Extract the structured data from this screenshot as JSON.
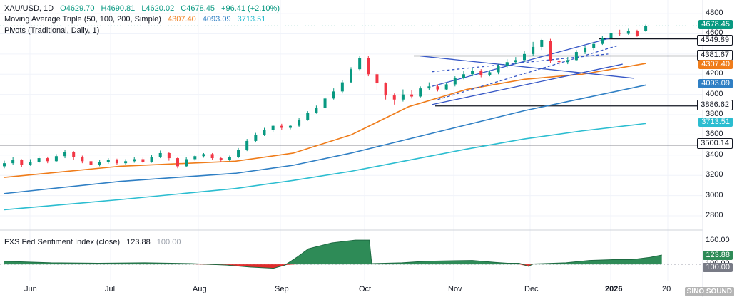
{
  "legend": {
    "symbol": "XAU/USD, 1D",
    "open": "O4629.70",
    "high": "H4690.81",
    "low": "L4620.02",
    "close": "C4678.45",
    "change": "+96.41 (+2.10%)",
    "ma_label": "Moving Average Triple (50, 100, 200, Simple)",
    "ma50": "4307.40",
    "ma100": "4093.09",
    "ma200": "3713.51",
    "pivots_label": "Pivots (Traditional, Daily, 1)",
    "sentiment_label": "FXS Fed Sentiment Index (close)",
    "sentiment_value": "123.88",
    "sentiment_base": "100.00"
  },
  "price_tags": {
    "last": "4678.45",
    "r1": "4549.89",
    "p": "4381.67",
    "ma50": "4307.40",
    "ma100": "4093.09",
    "s1": "3886.62",
    "ma200": "3713.51",
    "s2": "3500.14",
    "sent_last": "123.88",
    "sent_base": "100.00"
  },
  "watermark": "SINO SOUND",
  "colors": {
    "up": "#089981",
    "down": "#f23645",
    "ma50": "#ef7c1a",
    "ma100": "#2f7fc4",
    "ma200": "#2bbdd0",
    "channel": "#3556c6",
    "sent_fill": "#2e8b57",
    "sent_neg": "#e02b2b"
  },
  "chart_data": {
    "type": "candlestick",
    "title": "XAU/USD, 1D",
    "x_ticks": [
      "Jun",
      "Jul",
      "Aug",
      "Sep",
      "Oct",
      "Nov",
      "Dec",
      "2026",
      "20"
    ],
    "y_ticks": [
      2800,
      3000,
      3200,
      3400,
      3600,
      3800,
      4000,
      4200,
      4400,
      4600,
      4800
    ],
    "y_range": [
      2680,
      4850
    ],
    "candles": [
      {
        "day": 0,
        "o": 3290,
        "c": 3320,
        "h": 3345,
        "l": 3270
      },
      {
        "day": 3,
        "o": 3320,
        "c": 3350,
        "h": 3380,
        "l": 3300
      },
      {
        "day": 6,
        "o": 3350,
        "c": 3305,
        "h": 3360,
        "l": 3280
      },
      {
        "day": 9,
        "o": 3305,
        "c": 3330,
        "h": 3360,
        "l": 3295
      },
      {
        "day": 12,
        "o": 3330,
        "c": 3370,
        "h": 3390,
        "l": 3320
      },
      {
        "day": 15,
        "o": 3370,
        "c": 3340,
        "h": 3385,
        "l": 3320
      },
      {
        "day": 18,
        "o": 3340,
        "c": 3390,
        "h": 3410,
        "l": 3330
      },
      {
        "day": 21,
        "o": 3390,
        "c": 3430,
        "h": 3450,
        "l": 3370
      },
      {
        "day": 24,
        "o": 3430,
        "c": 3380,
        "h": 3440,
        "l": 3350
      },
      {
        "day": 27,
        "o": 3380,
        "c": 3340,
        "h": 3395,
        "l": 3320
      },
      {
        "day": 30,
        "o": 3340,
        "c": 3300,
        "h": 3350,
        "l": 3270
      },
      {
        "day": 33,
        "o": 3300,
        "c": 3330,
        "h": 3355,
        "l": 3290
      },
      {
        "day": 36,
        "o": 3330,
        "c": 3350,
        "h": 3370,
        "l": 3315
      },
      {
        "day": 39,
        "o": 3350,
        "c": 3320,
        "h": 3365,
        "l": 3305
      },
      {
        "day": 42,
        "o": 3320,
        "c": 3340,
        "h": 3360,
        "l": 3300
      },
      {
        "day": 45,
        "o": 3340,
        "c": 3360,
        "h": 3380,
        "l": 3325
      },
      {
        "day": 48,
        "o": 3360,
        "c": 3335,
        "h": 3375,
        "l": 3320
      },
      {
        "day": 51,
        "o": 3335,
        "c": 3380,
        "h": 3400,
        "l": 3325
      },
      {
        "day": 54,
        "o": 3380,
        "c": 3420,
        "h": 3445,
        "l": 3370
      },
      {
        "day": 57,
        "o": 3420,
        "c": 3370,
        "h": 3430,
        "l": 3345
      },
      {
        "day": 60,
        "o": 3370,
        "c": 3290,
        "h": 3380,
        "l": 3270
      },
      {
        "day": 63,
        "o": 3290,
        "c": 3360,
        "h": 3380,
        "l": 3280
      },
      {
        "day": 66,
        "o": 3360,
        "c": 3390,
        "h": 3405,
        "l": 3345
      },
      {
        "day": 69,
        "o": 3390,
        "c": 3410,
        "h": 3420,
        "l": 3375
      },
      {
        "day": 72,
        "o": 3410,
        "c": 3370,
        "h": 3420,
        "l": 3350
      },
      {
        "day": 75,
        "o": 3370,
        "c": 3350,
        "h": 3385,
        "l": 3330
      },
      {
        "day": 78,
        "o": 3350,
        "c": 3380,
        "h": 3395,
        "l": 3340
      },
      {
        "day": 81,
        "o": 3380,
        "c": 3450,
        "h": 3470,
        "l": 3370
      },
      {
        "day": 84,
        "o": 3450,
        "c": 3540,
        "h": 3560,
        "l": 3440
      },
      {
        "day": 87,
        "o": 3540,
        "c": 3600,
        "h": 3620,
        "l": 3525
      },
      {
        "day": 90,
        "o": 3600,
        "c": 3650,
        "h": 3670,
        "l": 3590
      },
      {
        "day": 93,
        "o": 3650,
        "c": 3690,
        "h": 3700,
        "l": 3630
      },
      {
        "day": 96,
        "o": 3690,
        "c": 3670,
        "h": 3710,
        "l": 3650
      },
      {
        "day": 99,
        "o": 3670,
        "c": 3690,
        "h": 3700,
        "l": 3655
      },
      {
        "day": 102,
        "o": 3690,
        "c": 3750,
        "h": 3770,
        "l": 3680
      },
      {
        "day": 105,
        "o": 3750,
        "c": 3820,
        "h": 3835,
        "l": 3740
      },
      {
        "day": 108,
        "o": 3820,
        "c": 3870,
        "h": 3890,
        "l": 3810
      },
      {
        "day": 111,
        "o": 3870,
        "c": 3960,
        "h": 3975,
        "l": 3860
      },
      {
        "day": 114,
        "o": 3960,
        "c": 4030,
        "h": 4060,
        "l": 3950
      },
      {
        "day": 117,
        "o": 4030,
        "c": 4120,
        "h": 4140,
        "l": 4010
      },
      {
        "day": 120,
        "o": 4120,
        "c": 4250,
        "h": 4270,
        "l": 4110
      },
      {
        "day": 123,
        "o": 4250,
        "c": 4360,
        "h": 4380,
        "l": 4240
      },
      {
        "day": 126,
        "o": 4360,
        "c": 4200,
        "h": 4381,
        "l": 4180
      },
      {
        "day": 129,
        "o": 4200,
        "c": 4110,
        "h": 4220,
        "l": 4040
      },
      {
        "day": 132,
        "o": 4110,
        "c": 3990,
        "h": 4120,
        "l": 3950
      },
      {
        "day": 135,
        "o": 3990,
        "c": 3950,
        "h": 4010,
        "l": 3900
      },
      {
        "day": 138,
        "o": 3950,
        "c": 4000,
        "h": 4050,
        "l": 3930
      },
      {
        "day": 141,
        "o": 4000,
        "c": 3980,
        "h": 4040,
        "l": 3960
      },
      {
        "day": 144,
        "o": 3980,
        "c": 4060,
        "h": 4080,
        "l": 3970
      },
      {
        "day": 147,
        "o": 4060,
        "c": 4080,
        "h": 4120,
        "l": 4040
      },
      {
        "day": 150,
        "o": 4080,
        "c": 4050,
        "h": 4100,
        "l": 4030
      },
      {
        "day": 153,
        "o": 4050,
        "c": 4100,
        "h": 4120,
        "l": 4040
      },
      {
        "day": 156,
        "o": 4100,
        "c": 4160,
        "h": 4180,
        "l": 4080
      },
      {
        "day": 159,
        "o": 4160,
        "c": 4200,
        "h": 4230,
        "l": 4150
      },
      {
        "day": 162,
        "o": 4200,
        "c": 4230,
        "h": 4260,
        "l": 4180
      },
      {
        "day": 165,
        "o": 4230,
        "c": 4190,
        "h": 4250,
        "l": 4170
      },
      {
        "day": 168,
        "o": 4190,
        "c": 4220,
        "h": 4240,
        "l": 4180
      },
      {
        "day": 171,
        "o": 4220,
        "c": 4280,
        "h": 4300,
        "l": 4200
      },
      {
        "day": 174,
        "o": 4280,
        "c": 4320,
        "h": 4350,
        "l": 4260
      },
      {
        "day": 177,
        "o": 4320,
        "c": 4340,
        "h": 4370,
        "l": 4300
      },
      {
        "day": 180,
        "o": 4340,
        "c": 4400,
        "h": 4430,
        "l": 4320
      },
      {
        "day": 183,
        "o": 4400,
        "c": 4470,
        "h": 4520,
        "l": 4380
      },
      {
        "day": 186,
        "o": 4470,
        "c": 4540,
        "h": 4549,
        "l": 4440
      },
      {
        "day": 189,
        "o": 4530,
        "c": 4330,
        "h": 4550,
        "l": 4310
      },
      {
        "day": 192,
        "o": 4330,
        "c": 4320,
        "h": 4360,
        "l": 4290
      },
      {
        "day": 195,
        "o": 4320,
        "c": 4340,
        "h": 4370,
        "l": 4300
      },
      {
        "day": 198,
        "o": 4340,
        "c": 4420,
        "h": 4440,
        "l": 4330
      },
      {
        "day": 201,
        "o": 4420,
        "c": 4460,
        "h": 4480,
        "l": 4400
      },
      {
        "day": 204,
        "o": 4460,
        "c": 4500,
        "h": 4520,
        "l": 4440
      },
      {
        "day": 207,
        "o": 4500,
        "c": 4560,
        "h": 4580,
        "l": 4490
      },
      {
        "day": 210,
        "o": 4560,
        "c": 4610,
        "h": 4630,
        "l": 4540
      },
      {
        "day": 213,
        "o": 4610,
        "c": 4600,
        "h": 4640,
        "l": 4580
      },
      {
        "day": 216,
        "o": 4600,
        "c": 4630,
        "h": 4650,
        "l": 4590
      },
      {
        "day": 219,
        "o": 4629,
        "c": 4582,
        "h": 4640,
        "l": 4570
      },
      {
        "day": 222,
        "o": 4629.7,
        "c": 4678.45,
        "h": 4690.81,
        "l": 4620.02
      }
    ],
    "moving_averages": [
      {
        "name": "MA50",
        "points": [
          [
            0,
            3180
          ],
          [
            40,
            3290
          ],
          [
            80,
            3340
          ],
          [
            100,
            3420
          ],
          [
            120,
            3600
          ],
          [
            140,
            3880
          ],
          [
            160,
            4050
          ],
          [
            180,
            4150
          ],
          [
            200,
            4200
          ],
          [
            222,
            4307
          ]
        ]
      },
      {
        "name": "MA100",
        "points": [
          [
            0,
            3020
          ],
          [
            40,
            3140
          ],
          [
            80,
            3220
          ],
          [
            100,
            3300
          ],
          [
            120,
            3420
          ],
          [
            140,
            3560
          ],
          [
            160,
            3700
          ],
          [
            180,
            3840
          ],
          [
            200,
            3960
          ],
          [
            222,
            4093
          ]
        ]
      },
      {
        "name": "MA200",
        "points": [
          [
            0,
            2860
          ],
          [
            40,
            2960
          ],
          [
            80,
            3070
          ],
          [
            100,
            3150
          ],
          [
            120,
            3240
          ],
          [
            140,
            3350
          ],
          [
            160,
            3460
          ],
          [
            180,
            3560
          ],
          [
            200,
            3640
          ],
          [
            222,
            3713
          ]
        ]
      }
    ],
    "pivot_levels": [
      {
        "name": "R1",
        "value": 4549.89
      },
      {
        "name": "P",
        "value": 4381.67
      },
      {
        "name": "S1",
        "value": 3886.62
      },
      {
        "name": "S2",
        "value": 3500.14
      }
    ],
    "channel_lines": [
      {
        "from": [
          148,
          4080
        ],
        "to": [
          210,
          4560
        ]
      },
      {
        "from": [
          148,
          3900
        ],
        "to": [
          214,
          4300
        ]
      },
      {
        "from": [
          148,
          4225
        ],
        "to": [
          209,
          4400
        ]
      },
      {
        "from": [
          150,
          3950
        ],
        "to": [
          212,
          4480
        ]
      },
      {
        "from": [
          144,
          4380
        ],
        "to": [
          218,
          4160
        ]
      }
    ],
    "sentiment": {
      "name": "FXS Fed Sentiment Index (close)",
      "y_ticks": [
        100,
        160
      ],
      "y_range": [
        60,
        175
      ],
      "baseline": 100,
      "points": [
        [
          0,
          108
        ],
        [
          20,
          104
        ],
        [
          40,
          103
        ],
        [
          60,
          104
        ],
        [
          80,
          102
        ],
        [
          95,
          98
        ],
        [
          105,
          93
        ],
        [
          115,
          90
        ],
        [
          120,
          98
        ],
        [
          125,
          118
        ],
        [
          130,
          140
        ],
        [
          140,
          155
        ],
        [
          150,
          162
        ],
        [
          156,
          162
        ],
        [
          157,
          102
        ],
        [
          170,
          104
        ],
        [
          180,
          108
        ],
        [
          200,
          110
        ],
        [
          210,
          105
        ],
        [
          215,
          103
        ],
        [
          220,
          103
        ],
        [
          224,
          95
        ],
        [
          226,
          101
        ],
        [
          240,
          104
        ],
        [
          250,
          110
        ],
        [
          260,
          112
        ],
        [
          268,
          112
        ],
        [
          276,
          118
        ],
        [
          281,
          123.88
        ]
      ]
    }
  }
}
